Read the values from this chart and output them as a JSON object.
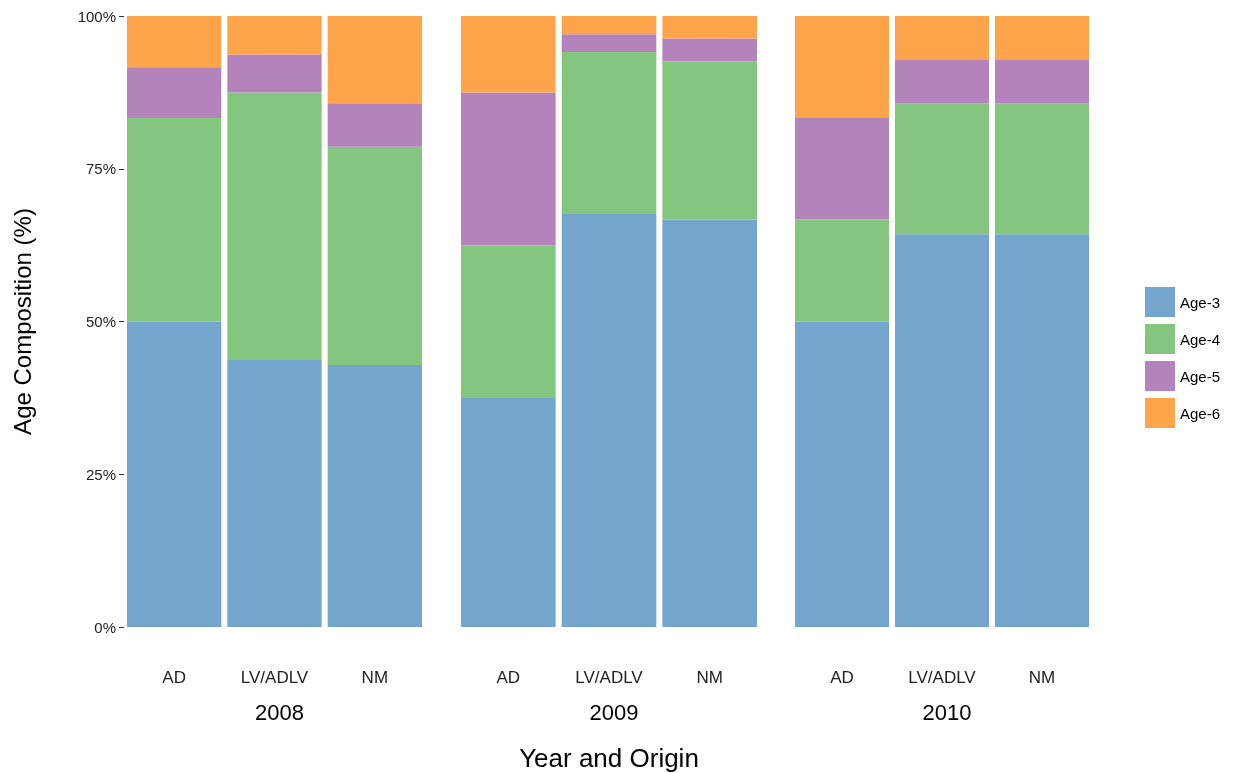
{
  "chart_data": [
    {
      "type": "bar",
      "title": "2008",
      "ylabel": "Age Composition (%)",
      "categories": [
        "AD",
        "LV/ADLV",
        "NM"
      ],
      "stacked": true,
      "ylim": [
        0,
        100
      ],
      "yticks": [
        {
          "value": 0,
          "label": "0%"
        },
        {
          "value": 25,
          "label": "25%"
        },
        {
          "value": 50,
          "label": "50%"
        },
        {
          "value": 75,
          "label": "75%"
        },
        {
          "value": 100,
          "label": "100%"
        }
      ],
      "grid": false,
      "legend": false,
      "series": [
        {
          "color": "#74a5cc",
          "values": [
            50,
            43.7,
            42.9
          ]
        },
        {
          "color": "#84c680",
          "values": [
            33.3,
            43.8,
            35.7
          ]
        },
        {
          "color": "#b583bc",
          "values": [
            8.3,
            6.2,
            7.1
          ]
        },
        {
          "color": "#fea44b",
          "values": [
            8.4,
            6.3,
            14.3
          ]
        }
      ]
    },
    {
      "type": "bar",
      "title": "2009",
      "xlabel": "Year and Origin",
      "categories": [
        "AD",
        "LV/ADLV",
        "NM"
      ],
      "stacked": true,
      "ylim": [
        0,
        100
      ],
      "tick_labels": "x",
      "grid": false,
      "legend": false,
      "series": [
        {
          "color": "#74a5cc",
          "values": [
            37.5,
            67.6,
            66.7
          ]
        },
        {
          "color": "#84c680",
          "values": [
            25,
            26.5,
            25.9
          ]
        },
        {
          "color": "#b583bc",
          "values": [
            25,
            2.9,
            3.7
          ]
        },
        {
          "color": "#fea44b",
          "values": [
            12.5,
            3,
            3.7
          ]
        }
      ]
    },
    {
      "type": "bar",
      "title": "2010",
      "categories": [
        "AD",
        "LV/ADLV",
        "NM"
      ],
      "stacked": true,
      "ylim": [
        0,
        100
      ],
      "tick_labels": "x",
      "grid": false,
      "legend": "right",
      "series": [
        {
          "name": "Age-3",
          "color": "#74a5cc",
          "values": [
            50,
            64.3,
            64.3
          ]
        },
        {
          "name": "Age-4",
          "color": "#84c680",
          "values": [
            16.7,
            21.4,
            21.4
          ]
        },
        {
          "name": "Age-5",
          "color": "#b583bc",
          "values": [
            16.6,
            7.1,
            7.1
          ]
        },
        {
          "name": "Age-6",
          "color": "#fea44b",
          "values": [
            16.7,
            7.2,
            7.2
          ]
        }
      ]
    }
  ]
}
